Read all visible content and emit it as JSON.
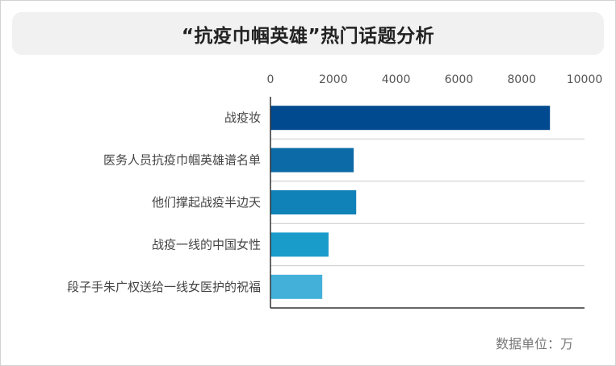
{
  "title": "“抗疫巾帼英雄”热门话题分析",
  "unit_note": "数据单位：万",
  "chart_data": {
    "type": "bar",
    "orientation": "horizontal",
    "categories": [
      "战疫妆",
      "医务人员抗疫巾帼英雄谱名单",
      "他们撑起战疫半边天",
      "战疫一线的中国女性",
      "段子手朱广权送给一线女医护的祝福"
    ],
    "values": [
      8900,
      2650,
      2730,
      1850,
      1650
    ],
    "xlim": [
      0,
      10000
    ],
    "xticks": [
      0,
      2000,
      4000,
      6000,
      8000,
      10000
    ],
    "xaxis_position": "top",
    "grid": "horizontal separators",
    "legend": "none",
    "colors": [
      "#024a8f",
      "#0c6aa6",
      "#1182b8",
      "#1a9ccb",
      "#43b0da"
    ]
  }
}
